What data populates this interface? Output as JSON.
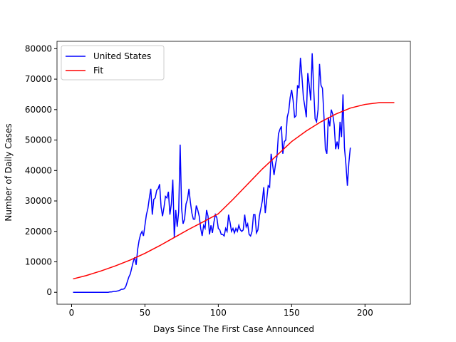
{
  "chart_data": {
    "type": "line",
    "xlabel": "Days Since The First Case Announced",
    "ylabel": "Number of Daily Cases",
    "xlim": [
      -9.95,
      230.95
    ],
    "xticks": [
      0,
      50,
      100,
      150,
      200
    ],
    "ylim": [
      -3925,
      82425
    ],
    "yticks": [
      0,
      10000,
      20000,
      30000,
      40000,
      50000,
      60000,
      70000,
      80000
    ],
    "legend": "upper left",
    "series": [
      {
        "name": "United States",
        "color": "#0000ff",
        "x": [
          1,
          2,
          3,
          4,
          5,
          6,
          7,
          8,
          9,
          10,
          11,
          12,
          13,
          14,
          15,
          16,
          17,
          18,
          19,
          20,
          21,
          22,
          23,
          24,
          25,
          26,
          27,
          28,
          29,
          30,
          31,
          32,
          33,
          34,
          35,
          36,
          37,
          38,
          39,
          40,
          41,
          42,
          43,
          44,
          45,
          46,
          47,
          48,
          49,
          50,
          51,
          52,
          53,
          54,
          55,
          56,
          57,
          58,
          59,
          60,
          61,
          62,
          63,
          64,
          65,
          66,
          67,
          68,
          69,
          70,
          71,
          72,
          73,
          74,
          75,
          76,
          77,
          78,
          79,
          80,
          81,
          82,
          83,
          84,
          85,
          86,
          87,
          88,
          89,
          90,
          91,
          92,
          93,
          94,
          95,
          96,
          97,
          98,
          99,
          100,
          101,
          102,
          103,
          104,
          105,
          106,
          107,
          108,
          109,
          110,
          111,
          112,
          113,
          114,
          115,
          116,
          117,
          118,
          119,
          120,
          121,
          122,
          123,
          124,
          125,
          126,
          127,
          128,
          129,
          130,
          131,
          132,
          133,
          134,
          135,
          136,
          137,
          138,
          139,
          140,
          141,
          142,
          143,
          144,
          145,
          146,
          147,
          148,
          149,
          150,
          151,
          152,
          153,
          154,
          155,
          156,
          157,
          158,
          159,
          160,
          161,
          162,
          163,
          164,
          165,
          166,
          167,
          168,
          169,
          170,
          171,
          172,
          173,
          174,
          175,
          176,
          177,
          178,
          179,
          180,
          181,
          182,
          183,
          184,
          185,
          186,
          187,
          188,
          189,
          190
        ],
        "values": [
          0,
          0,
          0,
          0,
          0,
          0,
          0,
          0,
          0,
          0,
          0,
          0,
          0,
          0,
          0,
          0,
          0,
          0,
          0,
          0,
          0,
          0,
          0,
          0,
          0,
          100,
          100,
          200,
          300,
          300,
          400,
          500,
          700,
          1000,
          1000,
          1200,
          2000,
          3500,
          5000,
          6000,
          8000,
          10000,
          11500,
          9000,
          14000,
          17000,
          19000,
          20000,
          18500,
          22000,
          25500,
          27500,
          31000,
          34000,
          25500,
          30500,
          31000,
          33500,
          34000,
          35500,
          28000,
          25000,
          28000,
          31500,
          31000,
          33000,
          25500,
          29000,
          37000,
          18000,
          27000,
          21500,
          26500,
          48500,
          27500,
          22500,
          24000,
          29000,
          30500,
          34000,
          29500,
          26000,
          24000,
          24000,
          28500,
          27000,
          25000,
          21000,
          18500,
          22000,
          21000,
          27000,
          25000,
          19000,
          22000,
          19500,
          23000,
          25500,
          24500,
          21000,
          20500,
          19000,
          19000,
          18500,
          21000,
          20000,
          25500,
          23000,
          20000,
          21000,
          19500,
          21000,
          20000,
          22000,
          20500,
          20000,
          20500,
          25500,
          21500,
          22500,
          19000,
          18500,
          20000,
          25500,
          25500,
          19500,
          20500,
          25000,
          27500,
          30000,
          34500,
          26000,
          30500,
          35000,
          34500,
          45500,
          42000,
          38500,
          42000,
          44500,
          52000,
          53500,
          54500,
          45500,
          49500,
          50000,
          57500,
          59500,
          64000,
          66500,
          63000,
          57500,
          58000,
          68000,
          67000,
          77000,
          71000,
          64000,
          61000,
          57500,
          72000,
          68000,
          63000,
          78500,
          67000,
          57000,
          56000,
          60000,
          75000,
          68000,
          67000,
          58000,
          47000,
          45500,
          57500,
          54500,
          60000,
          58500,
          55000,
          47000,
          49500,
          47000,
          56000,
          51000,
          65000,
          47500,
          42000,
          35000,
          42500,
          47500
        ]
      },
      {
        "name": "Fit",
        "color": "#ff0000",
        "x": [
          1,
          10,
          20,
          30,
          40,
          50,
          60,
          70,
          80,
          90,
          100,
          110,
          120,
          130,
          140,
          150,
          160,
          170,
          180,
          190,
          200,
          210,
          220
        ],
        "values": [
          4400,
          5500,
          7000,
          8700,
          10600,
          12800,
          15300,
          18000,
          20700,
          23200,
          25800,
          30500,
          35500,
          40500,
          45000,
          49500,
          53000,
          56000,
          58500,
          60500,
          61700,
          62300,
          62300
        ]
      }
    ]
  }
}
